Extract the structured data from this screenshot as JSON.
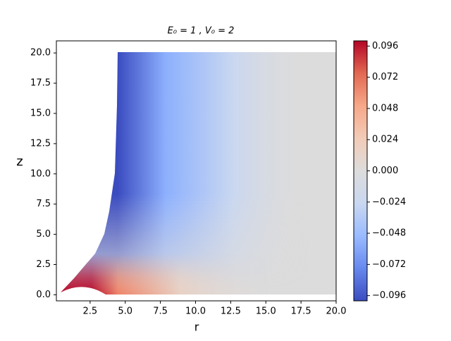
{
  "chart_data": {
    "type": "contour",
    "title": "E₀ = 1 , V₀ = 2",
    "x_label": "r",
    "y_label": "z",
    "xlim": [
      0.1,
      20
    ],
    "ylim": [
      -0.5,
      21
    ],
    "xticks": [
      2.5,
      {
        "value": 5,
        "label": "5.0"
      },
      7.5,
      {
        "value": 10,
        "label": "10.0"
      },
      12.5,
      {
        "value": 15,
        "label": "15.0"
      },
      17.5,
      {
        "value": 20,
        "label": "20.0"
      }
    ],
    "yticks": [
      {
        "value": 0,
        "label": "0.0"
      },
      2.5,
      {
        "value": 5,
        "label": "5.0"
      },
      7.5,
      {
        "value": 10,
        "label": "10.0"
      },
      12.5,
      {
        "value": 15,
        "label": "15.0"
      },
      17.5,
      {
        "value": 20,
        "label": "20.0"
      }
    ],
    "colormap": "coolwarm",
    "colorbar_lim": [
      -0.1,
      0.1
    ],
    "colorbar_ticks": [
      {
        "value": -0.096,
        "label": "−0.096"
      },
      {
        "value": -0.072,
        "label": "−0.072"
      },
      {
        "value": -0.048,
        "label": "−0.048"
      },
      {
        "value": -0.024,
        "label": "−0.024"
      },
      {
        "value": 0,
        "label": "0.000"
      },
      0.024,
      0.048,
      0.072,
      0.096
    ]
  }
}
